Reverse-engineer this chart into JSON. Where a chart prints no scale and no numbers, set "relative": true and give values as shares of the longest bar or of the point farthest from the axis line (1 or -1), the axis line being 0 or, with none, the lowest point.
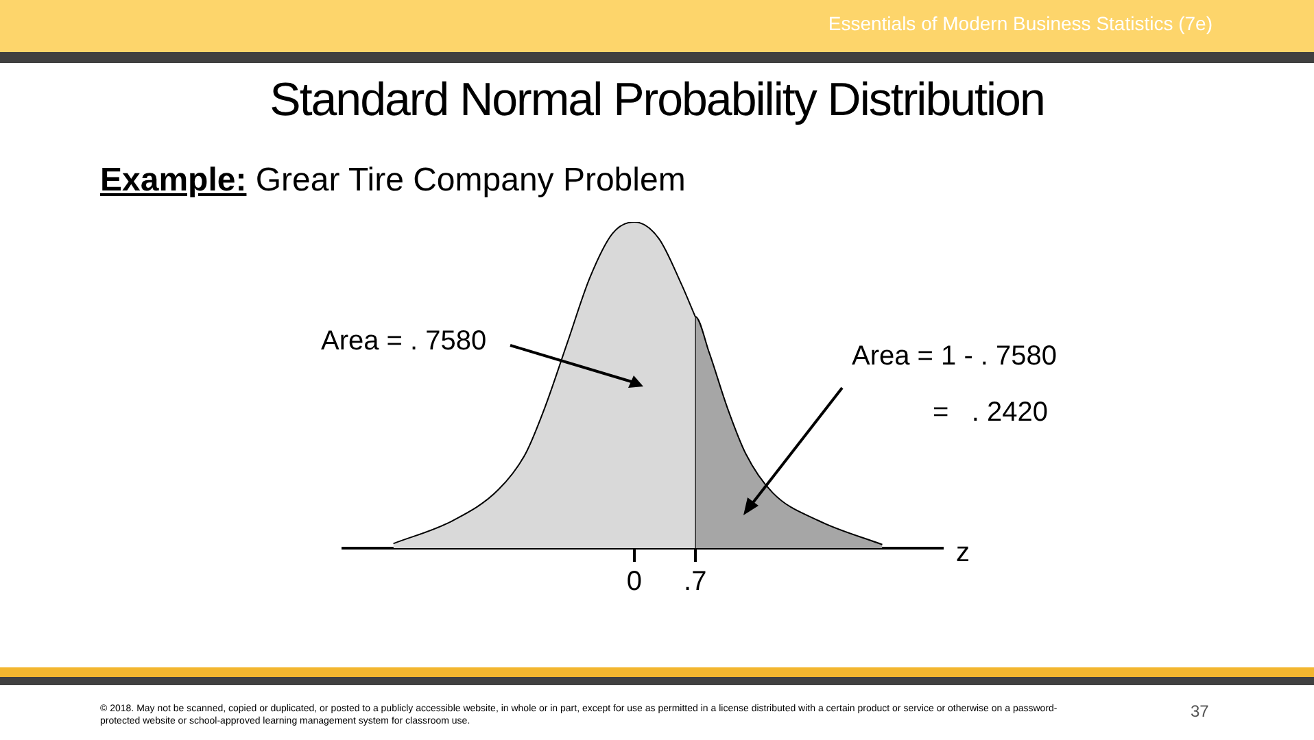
{
  "chart_data": {
    "type": "area",
    "title": "Standard Normal Probability Distribution",
    "subtitle": "Example: Grear Tire Company Problem",
    "xlabel": "z",
    "relative": true,
    "grid": false,
    "legend": false,
    "marker": "none",
    "xlim": [
      -3.35,
      3.54
    ],
    "xticks": [
      0,
      {
        "value": 0.7,
        "label": ".7"
      }
    ],
    "series": [
      {
        "color": "#d9d9d9",
        "x": [
          -2.77,
          -2.09,
          -1.56,
          -1.25,
          -1.03,
          -0.77,
          -0.51,
          -0.25,
          0,
          0.28,
          0.54,
          0.7
        ],
        "values": [
          0.014,
          0.084,
          0.18,
          0.29,
          0.43,
          0.63,
          0.83,
          0.965,
          1,
          0.95,
          0.81,
          0.71
        ]
      },
      {
        "color": "#a6a6a6",
        "x": [
          0.7,
          0.7,
          0.86,
          1.07,
          1.28,
          1.59,
          2.12,
          2.85
        ],
        "values": [
          0,
          0.71,
          0.6,
          0.43,
          0.29,
          0.17,
          0.084,
          0.011
        ]
      }
    ],
    "annotations": [
      "Essentials of Modern Business Statistics  (7e)",
      "Area = . 7580",
      "Area = 1 - . 7580",
      "=   . 2420",
      "© 2018. May not be scanned, copied or duplicated, or posted to a publicly accessible website, in whole or in part, except for use as permitted in a license distributed with a certain product or service or otherwise on a password-protected website or school-approved learning management system for classroom use.",
      "37"
    ]
  }
}
